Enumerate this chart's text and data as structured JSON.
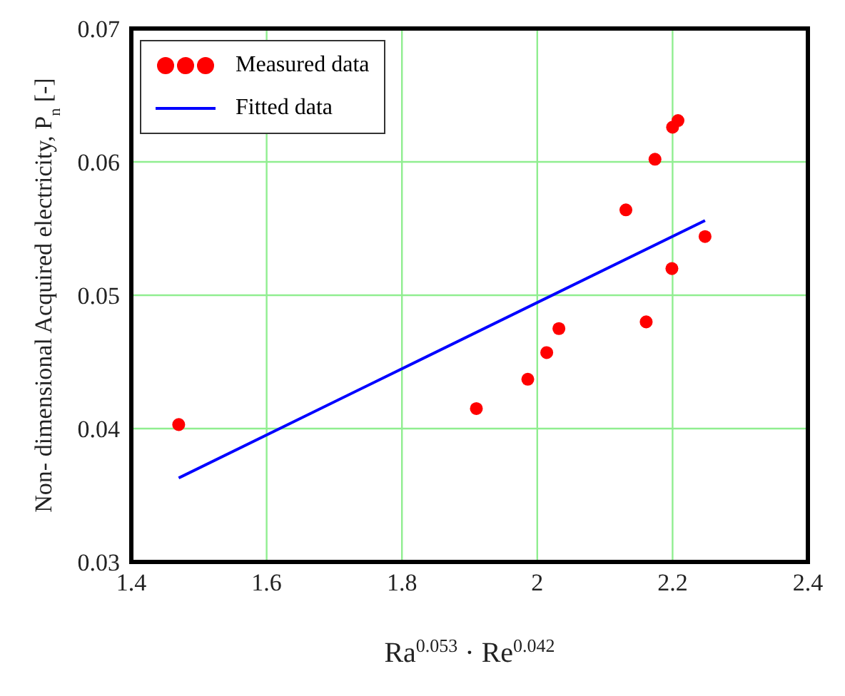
{
  "chart_data": {
    "type": "scatter",
    "xlabel": "Ra$^{0.053}$ · Re$^{0.042}$",
    "ylabel": "Non- dimensional Acquired electricity, P$_{n}$ [-]",
    "series": [
      {
        "name": "Measured data",
        "color": "#ff0000",
        "marker": "circle",
        "x": [
          1.47,
          1.91,
          1.986,
          2.014,
          2.032,
          2.131,
          2.161,
          2.174,
          2.199,
          2.2,
          2.208,
          2.248
        ],
        "values": [
          0.0403,
          0.0415,
          0.0437,
          0.0457,
          0.0475,
          0.0564,
          0.048,
          0.0602,
          0.052,
          0.0626,
          0.0631,
          0.0544
        ]
      },
      {
        "name": "Fitted data",
        "type": "line",
        "color": "#0000ff",
        "marker": "none",
        "line_style": "solid",
        "x": [
          1.47,
          2.248
        ],
        "values": [
          0.0363,
          0.0556
        ]
      }
    ],
    "xlim": [
      1.4,
      2.4
    ],
    "xticks": [
      1.4,
      1.6,
      1.8,
      2,
      2.2,
      2.4
    ],
    "ylim": [
      0.03,
      0.07
    ],
    "yticks": [
      0.03,
      0.04,
      0.05,
      0.06,
      0.07
    ],
    "grid": true,
    "legend": "top left"
  }
}
